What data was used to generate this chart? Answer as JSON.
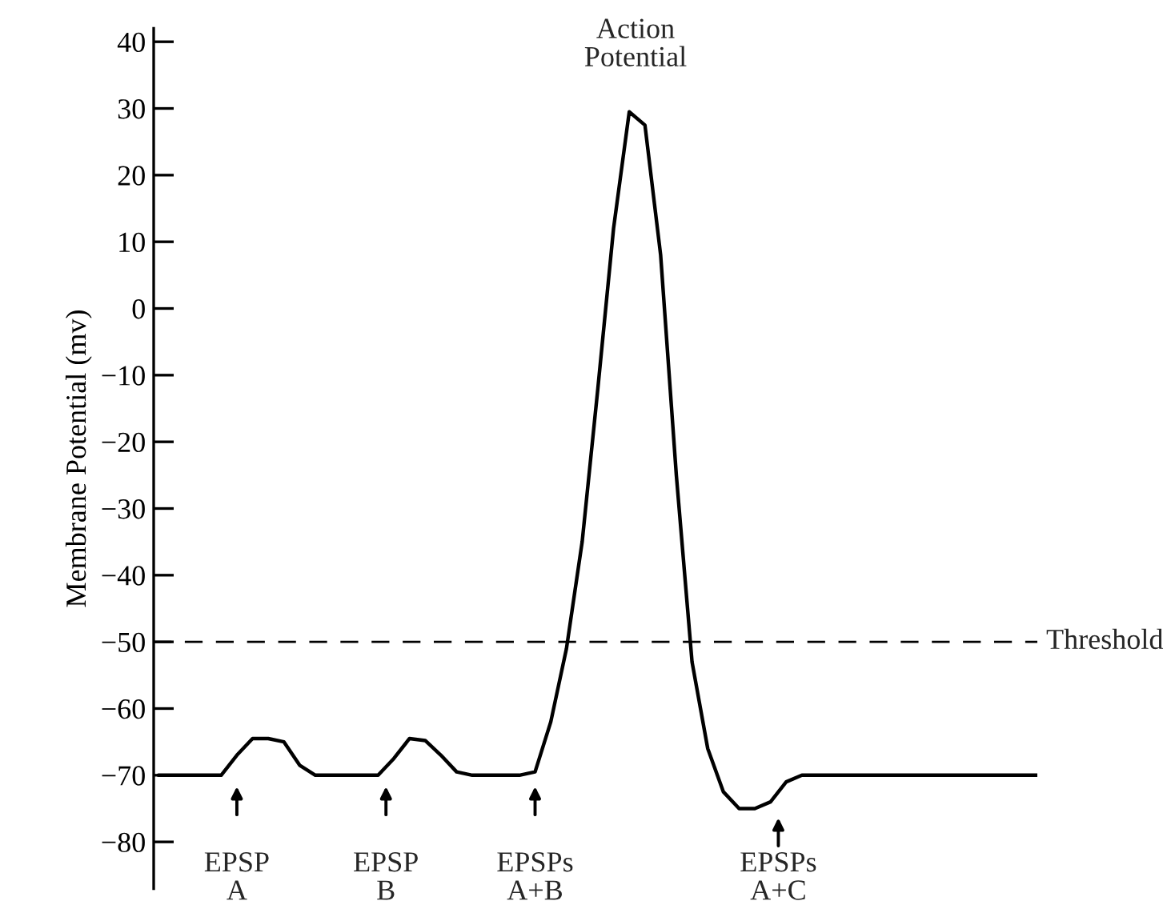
{
  "chart_data": {
    "type": "line",
    "ylabel": "Membrane Potential (mv)",
    "categories": [
      null,
      null,
      null,
      null,
      null,
      null,
      null,
      null,
      null,
      null,
      null,
      null,
      null,
      null,
      null,
      null,
      null,
      null,
      null,
      null,
      null,
      null,
      null,
      null,
      null,
      null,
      null,
      null,
      null,
      null,
      null,
      null,
      null,
      null,
      null,
      null,
      null,
      null,
      null,
      null,
      null,
      null,
      null,
      null,
      null,
      null,
      null,
      null,
      null,
      null,
      null,
      null,
      null,
      null,
      null,
      null,
      null
    ],
    "series": [
      {
        "color": "#000000",
        "values": [
          -70,
          -70,
          -70,
          -70,
          -70,
          -67,
          -64.5,
          -64.5,
          -65,
          -68.5,
          -70,
          -70,
          -70,
          -70,
          -70,
          -67.5,
          -64.5,
          -64.8,
          -67,
          -69.5,
          -70,
          -70,
          -70,
          -70,
          -69.5,
          -62,
          -51,
          -35,
          -12,
          12,
          29.5,
          27.5,
          8,
          -25,
          -53,
          -66,
          -72.5,
          -75,
          -75,
          -74,
          -71,
          -70,
          -70,
          -70,
          -70,
          -70,
          -70,
          -70,
          -70,
          -70,
          -70,
          -70,
          -70,
          -70,
          -70,
          -70,
          -70
        ]
      }
    ],
    "ylim": [
      -87,
      42
    ],
    "yticks": [
      -80,
      -70,
      -60,
      -50,
      -40,
      -30,
      -20,
      -10,
      0,
      10,
      20,
      30,
      40
    ],
    "ref_lines": [
      {
        "axis": "y",
        "value": -50,
        "label": "Threshold",
        "line_style": "dashed",
        "color": "#000000"
      }
    ],
    "annotations": [
      "Action\nPotential",
      "EPSP\nA",
      "EPSP\nB",
      "EPSPs\nA+B",
      "EPSPs\nA+C"
    ],
    "tick_labels": "y",
    "grid": false,
    "legend": false,
    "marker": "none",
    "line_style": "solid"
  }
}
